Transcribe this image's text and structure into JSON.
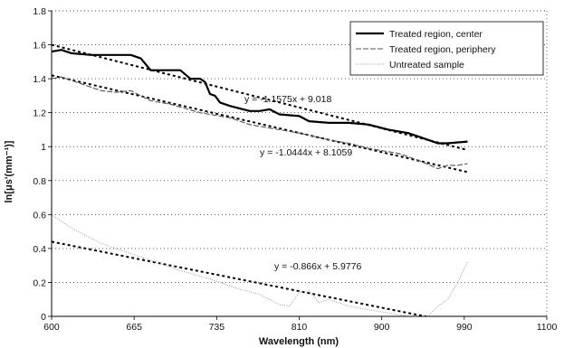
{
  "chart_data": {
    "type": "line",
    "title": "",
    "xlabel": "Wavelength (nm)",
    "ylabel": "ln[μs'(mm⁻¹)]",
    "xlim": [
      600,
      1100
    ],
    "ylim": [
      0,
      1.8
    ],
    "x_ticks": [
      "600",
      "665",
      "735",
      "810",
      "900",
      "990",
      "1100"
    ],
    "y_ticks": [
      "0",
      "0.2",
      "0.4",
      "0.6",
      "0.8",
      "1",
      "1.2",
      "1.4",
      "1.6",
      "1.8"
    ],
    "grid": "horizontal dotted",
    "legend_position": "top-right",
    "series": [
      {
        "name": "Treated region, center",
        "style": "solid-thick",
        "color": "#000000",
        "x": [
          600,
          610,
          620,
          640,
          660,
          680,
          690,
          700,
          720,
          730,
          740,
          750,
          755,
          760,
          765,
          770,
          780,
          800,
          810,
          820,
          830,
          850,
          860,
          880,
          900,
          920,
          940,
          960,
          975,
          990,
          1000,
          1020
        ],
        "y": [
          1.56,
          1.57,
          1.55,
          1.54,
          1.54,
          1.54,
          1.52,
          1.45,
          1.45,
          1.45,
          1.4,
          1.4,
          1.38,
          1.31,
          1.3,
          1.26,
          1.24,
          1.21,
          1.21,
          1.22,
          1.19,
          1.18,
          1.15,
          1.14,
          1.14,
          1.13,
          1.1,
          1.08,
          1.05,
          1.02,
          1.02,
          1.03
        ]
      },
      {
        "name": "Treated region, periphery",
        "style": "dash",
        "color": "#555555",
        "x": [
          600,
          610,
          630,
          650,
          665,
          680,
          690,
          700,
          720,
          750,
          780,
          800,
          820,
          850,
          880,
          900,
          920,
          950,
          970,
          990,
          1000,
          1010,
          1020
        ],
        "y": [
          1.4,
          1.41,
          1.37,
          1.33,
          1.32,
          1.33,
          1.3,
          1.27,
          1.25,
          1.2,
          1.17,
          1.13,
          1.11,
          1.08,
          1.04,
          1.02,
          0.99,
          0.96,
          0.92,
          0.87,
          0.89,
          0.89,
          0.9
        ]
      },
      {
        "name": "Untreated sample",
        "style": "dot-fine",
        "color": "#999999",
        "x": [
          600,
          610,
          620,
          650,
          680,
          700,
          730,
          760,
          790,
          810,
          830,
          840,
          850,
          860,
          870,
          880,
          900,
          930,
          960,
          980,
          990,
          1000,
          1010,
          1020
        ],
        "y": [
          0.6,
          0.56,
          0.52,
          0.43,
          0.37,
          0.33,
          0.27,
          0.22,
          0.16,
          0.13,
          0.07,
          0.06,
          0.14,
          0.15,
          0.08,
          0.1,
          0.06,
          0.03,
          0.0,
          0.0,
          0.06,
          0.1,
          0.2,
          0.32
        ]
      }
    ],
    "trendlines": [
      {
        "equation": "y = -1.1575x + 9.018",
        "x": [
          600,
          1020
        ],
        "y": [
          1.6,
          0.98
        ]
      },
      {
        "equation": "y = -1.0444x + 8.1059",
        "x": [
          600,
          1020
        ],
        "y": [
          1.42,
          0.85
        ]
      },
      {
        "equation": "y = -0.866x + 5.9776",
        "x": [
          600,
          1020
        ],
        "y": [
          0.44,
          -0.05
        ]
      }
    ]
  }
}
